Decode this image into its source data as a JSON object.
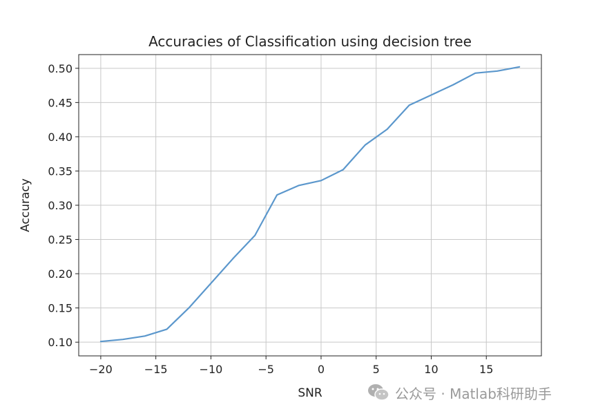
{
  "chart_data": {
    "type": "line",
    "title": "Accuracies of Classification using decision tree",
    "xlabel": "SNR",
    "ylabel": "Accuracy",
    "xlim": [
      -22,
      20
    ],
    "ylim": [
      0.08,
      0.52
    ],
    "xticks": [
      -20,
      -15,
      -10,
      -5,
      0,
      5,
      10,
      15
    ],
    "xtick_labels": [
      "−20",
      "−15",
      "−10",
      "−5",
      "0",
      "5",
      "10",
      "15"
    ],
    "yticks": [
      0.1,
      0.15,
      0.2,
      0.25,
      0.3,
      0.35,
      0.4,
      0.45,
      0.5
    ],
    "ytick_labels": [
      "0.10",
      "0.15",
      "0.20",
      "0.25",
      "0.30",
      "0.35",
      "0.40",
      "0.45",
      "0.50"
    ],
    "grid": true,
    "series": [
      {
        "color": "#5b97cc",
        "x": [
          -20,
          -18,
          -16,
          -14,
          -12,
          -10,
          -8,
          -6,
          -4,
          -2,
          0,
          2,
          4,
          6,
          8,
          10,
          12,
          14,
          16,
          18
        ],
        "y": [
          0.101,
          0.104,
          0.109,
          0.119,
          0.15,
          0.186,
          0.222,
          0.256,
          0.315,
          0.329,
          0.336,
          0.352,
          0.388,
          0.411,
          0.446,
          0.461,
          0.476,
          0.493,
          0.496,
          0.502
        ]
      }
    ]
  },
  "watermark": {
    "icon": "wechat-icon",
    "text": "公众号 · Matlab科研助手"
  }
}
